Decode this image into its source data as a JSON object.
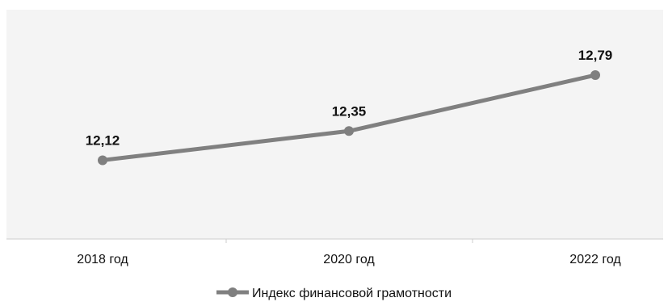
{
  "chart_data": {
    "type": "line",
    "categories": [
      "2018 год",
      "2020 год",
      "2022 год"
    ],
    "series": [
      {
        "name": "Индекс финансовой грамотности",
        "values": [
          12.12,
          12.35,
          12.79
        ],
        "labels": [
          "12,12",
          "12,35",
          "12,79"
        ]
      }
    ],
    "title": "",
    "xlabel": "",
    "ylabel": "",
    "ylim": [
      11.5,
      13.0
    ],
    "grid": false,
    "legend_position": "bottom",
    "colors": {
      "line": "#808080",
      "marker": "#7f7f7f",
      "plot_background": "#f4f4f4",
      "axis": "#cccccc"
    }
  }
}
